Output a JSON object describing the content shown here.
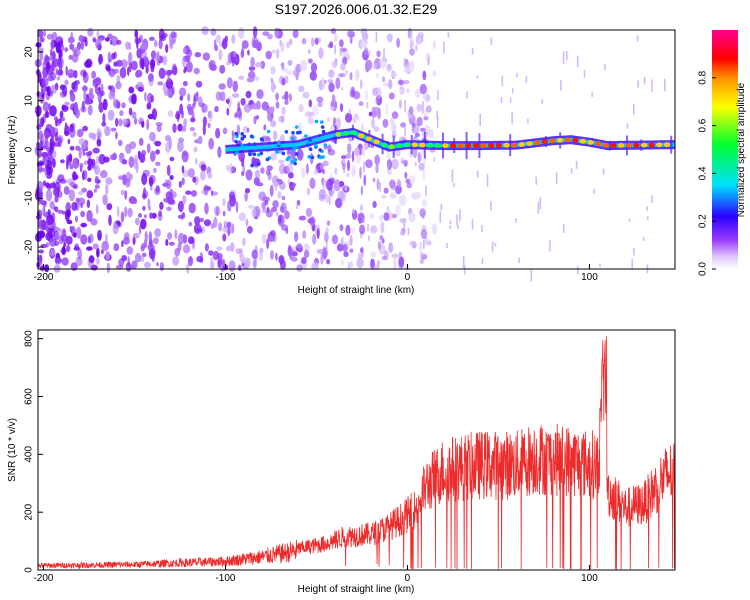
{
  "title": "S197.2026.006.01.32.E29",
  "colors": {
    "snr_line": "#ee2a2a",
    "background": "#ffffff",
    "axis": "#000000"
  },
  "chart_data": [
    {
      "type": "heatmap",
      "xlabel": "Height of straight line (km)",
      "ylabel": "Frequency (Hz)",
      "xlim": [
        -203,
        147
      ],
      "ylim": [
        -24.5,
        24.5
      ],
      "xticks": [
        -200,
        -100,
        0,
        100
      ],
      "yticks": [
        -20,
        -10,
        0,
        10,
        20
      ],
      "colorbar": {
        "label": "Normalized spectral amplitude",
        "range": [
          0,
          1
        ],
        "ticks": [
          "0.0",
          "0.2",
          "0.4",
          "0.6",
          "0.8"
        ],
        "colormap": "rainbow (white-violet-blue-cyan-green-yellow-orange-red)"
      },
      "ridge": {
        "description": "narrowband tone near 1-4 Hz appearing above about -100 km",
        "points": [
          [
            -100,
            0
          ],
          [
            -80,
            0.5
          ],
          [
            -60,
            1
          ],
          [
            -40,
            3
          ],
          [
            -30,
            3.5
          ],
          [
            -20,
            2
          ],
          [
            -10,
            0.5
          ],
          [
            0,
            1
          ],
          [
            20,
            0.8
          ],
          [
            40,
            0.8
          ],
          [
            60,
            0.9
          ],
          [
            80,
            1.8
          ],
          [
            90,
            2
          ],
          [
            100,
            1.5
          ],
          [
            110,
            0.8
          ],
          [
            147,
            1
          ]
        ]
      },
      "noise_region": [
        -203,
        -45
      ]
    },
    {
      "type": "line",
      "xlabel": "Height of straight line (km)",
      "ylabel": "SNR (10 * v/v)",
      "xlim": [
        -203,
        147
      ],
      "ylim": [
        0,
        830
      ],
      "xticks": [
        -200,
        -100,
        0,
        100
      ],
      "yticks": [
        0,
        200,
        400,
        600,
        800
      ],
      "series": [
        {
          "name": "SNR",
          "envelope_x": [
            -203,
            -150,
            -100,
            -80,
            -60,
            -45,
            -35,
            -20,
            -10,
            0,
            5,
            10,
            20,
            40,
            60,
            70,
            80,
            90,
            100,
            105,
            108,
            110,
            120,
            130,
            140,
            147
          ],
          "envelope_y": [
            20,
            25,
            40,
            60,
            90,
            110,
            140,
            150,
            180,
            230,
            260,
            350,
            420,
            440,
            440,
            470,
            460,
            460,
            440,
            450,
            820,
            330,
            260,
            280,
            380,
            420
          ]
        }
      ]
    }
  ]
}
